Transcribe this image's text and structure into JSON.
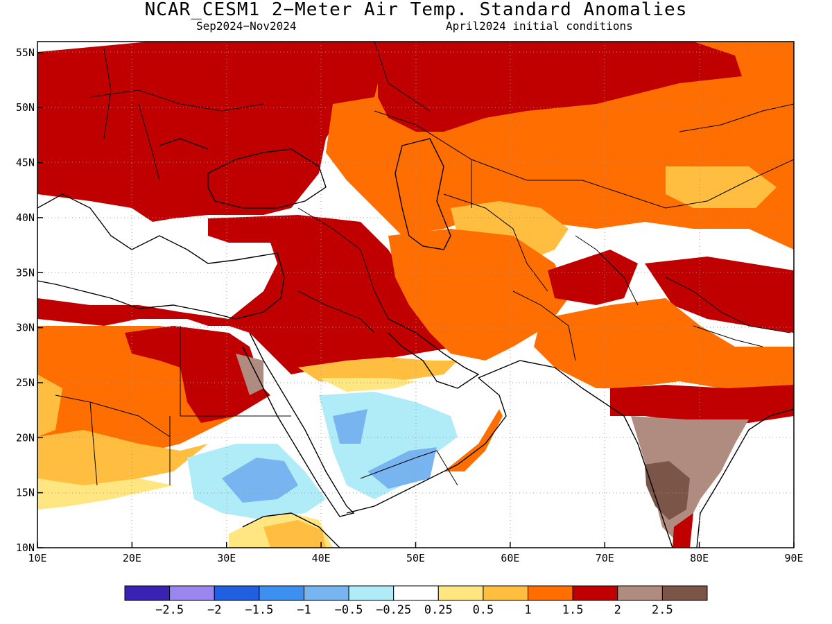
{
  "title": "NCAR_CESM1 2−Meter Air Temp. Standard Anomalies",
  "period": "Sep2024−Nov2024",
  "init": "April2024 initial conditions",
  "map": {
    "lon_range": [
      10,
      90
    ],
    "lat_range": [
      10,
      56
    ],
    "lat_ticks": [
      {
        "v": 55,
        "label": "55N"
      },
      {
        "v": 50,
        "label": "50N"
      },
      {
        "v": 45,
        "label": "45N"
      },
      {
        "v": 40,
        "label": "40N"
      },
      {
        "v": 35,
        "label": "35N"
      },
      {
        "v": 30,
        "label": "30N"
      },
      {
        "v": 25,
        "label": "25N"
      },
      {
        "v": 20,
        "label": "20N"
      },
      {
        "v": 15,
        "label": "15N"
      },
      {
        "v": 10,
        "label": "10N"
      }
    ],
    "lon_ticks": [
      {
        "v": 10,
        "label": "10E"
      },
      {
        "v": 20,
        "label": "20E"
      },
      {
        "v": 30,
        "label": "30E"
      },
      {
        "v": 40,
        "label": "40E"
      },
      {
        "v": 50,
        "label": "50E"
      },
      {
        "v": 60,
        "label": "60E"
      },
      {
        "v": 70,
        "label": "70E"
      },
      {
        "v": 80,
        "label": "80E"
      },
      {
        "v": 90,
        "label": "90E"
      }
    ]
  },
  "colorbar": {
    "colors": [
      "#3a22b4",
      "#9b86f0",
      "#2060e0",
      "#3d8ff0",
      "#78b4f0",
      "#b0ecf8",
      "#ffffff",
      "#ffe680",
      "#ffbe40",
      "#ff6e00",
      "#c00000",
      "#b08c80",
      "#7a5548"
    ],
    "labels": [
      "−2.5",
      "−2",
      "−1.5",
      "−1",
      "−0.5",
      "−0.25",
      "0.25",
      "0.5",
      "1",
      "1.5",
      "2",
      "2.5"
    ]
  }
}
